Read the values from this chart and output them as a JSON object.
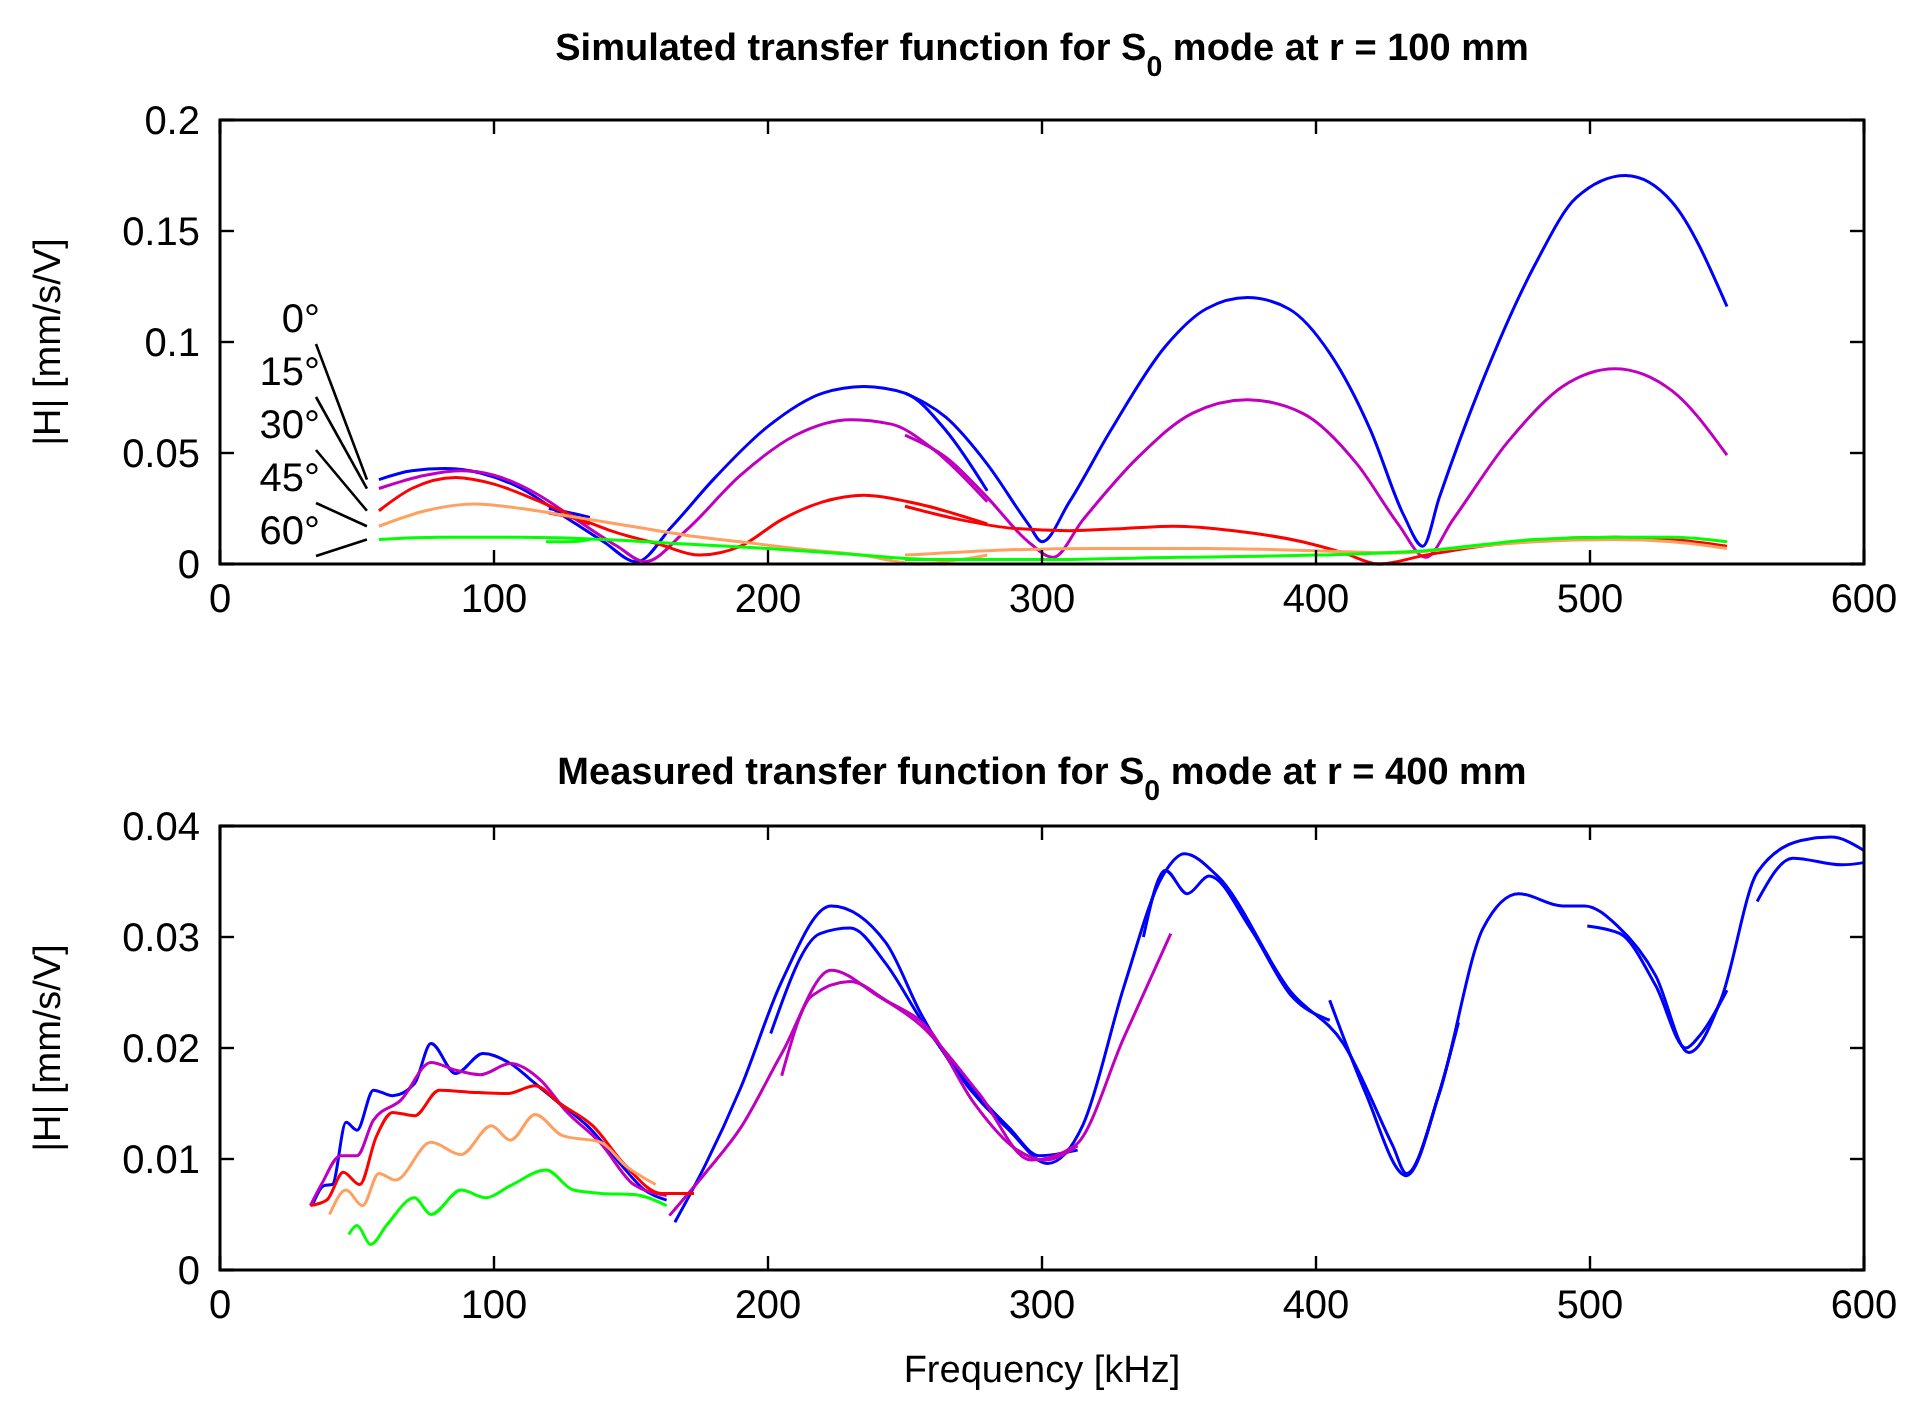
{
  "chart_data": [
    {
      "type": "line",
      "title": "Simulated transfer function for S$_{0}$ mode at r = 100 mm",
      "ylabel": "|H| [mm/s/V]",
      "xlim": [
        0,
        600
      ],
      "xticks": [
        0,
        100,
        200,
        300,
        400,
        500,
        600
      ],
      "ylim": [
        0,
        0.2
      ],
      "yticks": [
        0,
        0.05,
        0.1,
        0.15,
        0.2
      ],
      "series": [
        {
          "name": "0°",
          "color": "#0000ff",
          "x": [
            58,
            70,
            82,
            95,
            110,
            125,
            140,
            152,
            165,
            180,
            200,
            220,
            235,
            250,
            265,
            280
          ],
          "values": [
            0.038,
            0.042,
            0.043,
            0.041,
            0.034,
            0.022,
            0.01,
            0.001,
            0.017,
            0.038,
            0.062,
            0.077,
            0.08,
            0.077,
            0.06,
            0.033
          ]
        },
        {
          "color": "#0000ff",
          "x": [
            250,
            265,
            280,
            295,
            300,
            310,
            325,
            345,
            360,
            375,
            390,
            405,
            420,
            432,
            439,
            445,
            460,
            480,
            495,
            513,
            530,
            550
          ],
          "values": [
            0.077,
            0.066,
            0.045,
            0.018,
            0.01,
            0.028,
            0.06,
            0.098,
            0.115,
            0.12,
            0.115,
            0.095,
            0.06,
            0.022,
            0.008,
            0.03,
            0.08,
            0.135,
            0.165,
            0.175,
            0.163,
            0.116
          ]
        },
        {
          "color": "#0000ff",
          "x": [
            120,
            128,
            135
          ],
          "values": [
            0.025,
            0.023,
            0.021
          ]
        },
        {
          "name": "15°",
          "color": "#bf00bf",
          "x": [
            58,
            75,
            88,
            100,
            115,
            130,
            145,
            155,
            170,
            190,
            210,
            230,
            245,
            260,
            280
          ],
          "values": [
            0.034,
            0.04,
            0.042,
            0.04,
            0.032,
            0.02,
            0.008,
            0.001,
            0.015,
            0.04,
            0.058,
            0.065,
            0.063,
            0.052,
            0.028
          ]
        },
        {
          "color": "#bf00bf",
          "x": [
            250,
            265,
            280,
            295,
            304,
            315,
            335,
            355,
            375,
            395,
            415,
            430,
            440,
            450,
            470,
            490,
            509,
            530,
            550
          ],
          "values": [
            0.058,
            0.048,
            0.03,
            0.01,
            0.003,
            0.02,
            0.048,
            0.068,
            0.074,
            0.068,
            0.045,
            0.018,
            0.003,
            0.02,
            0.055,
            0.08,
            0.088,
            0.078,
            0.049
          ]
        },
        {
          "name": "30°",
          "color": "#ff0000",
          "x": [
            58,
            70,
            86,
            100,
            115,
            130,
            145,
            160,
            175,
            190,
            205,
            220,
            235,
            255,
            280
          ],
          "values": [
            0.024,
            0.034,
            0.039,
            0.036,
            0.029,
            0.021,
            0.014,
            0.009,
            0.004,
            0.008,
            0.02,
            0.028,
            0.031,
            0.027,
            0.018
          ]
        },
        {
          "color": "#ff0000",
          "x": [
            250,
            270,
            290,
            310,
            330,
            348,
            370,
            395,
            410,
            423,
            440,
            460,
            485,
            509,
            530,
            550
          ],
          "values": [
            0.026,
            0.02,
            0.016,
            0.015,
            0.016,
            0.017,
            0.015,
            0.01,
            0.005,
            0,
            0.004,
            0.008,
            0.011,
            0.012,
            0.011,
            0.008
          ]
        },
        {
          "color": "#ff0000",
          "x": [
            120,
            128,
            135
          ],
          "values": [
            0.023,
            0.021,
            0.018
          ]
        },
        {
          "name": "45°",
          "color": "#ffa060",
          "x": [
            58,
            75,
            93,
            110,
            130,
            150,
            170,
            190,
            210,
            234,
            255,
            270,
            280
          ],
          "values": [
            0.017,
            0.024,
            0.027,
            0.025,
            0.021,
            0.017,
            0.013,
            0.01,
            0.007,
            0.004,
            0,
            0.002,
            0.004
          ]
        },
        {
          "color": "#ffa060",
          "x": [
            250,
            280,
            320,
            360,
            400,
            430,
            450,
            480,
            509,
            530,
            550
          ],
          "values": [
            0.004,
            0.006,
            0.007,
            0.007,
            0.006,
            0.005,
            0.007,
            0.01,
            0.011,
            0.01,
            0.007
          ]
        },
        {
          "name": "60°",
          "color": "#00ff00",
          "x": [
            58,
            80,
            110,
            140,
            170,
            200,
            234,
            260,
            280
          ],
          "values": [
            0.011,
            0.012,
            0.012,
            0.011,
            0.009,
            0.007,
            0.004,
            0.002,
            0.002
          ]
        },
        {
          "color": "#00ff00",
          "x": [
            250,
            300,
            350,
            400,
            440,
            480,
            509,
            530,
            550
          ],
          "values": [
            0.002,
            0.002,
            0.003,
            0.004,
            0.006,
            0.011,
            0.012,
            0.012,
            0.01
          ]
        },
        {
          "color": "#00ff00",
          "x": [
            119,
            128,
            135
          ],
          "values": [
            0.01,
            0.01,
            0.011
          ]
        }
      ]
    },
    {
      "type": "line",
      "title": "Measured transfer function for S$_{0}$ mode at r = 400 mm",
      "xlabel": "Frequency [kHz]",
      "ylabel": "|H| [mm/s/V]",
      "xlim": [
        0,
        600
      ],
      "xticks": [
        0,
        100,
        200,
        300,
        400,
        500,
        600
      ],
      "ylim": [
        0,
        0.04
      ],
      "yticks": [
        0,
        0.01,
        0.02,
        0.03,
        0.04
      ],
      "series": [
        {
          "color": "#0000ff",
          "x": [
            34,
            38,
            41,
            46,
            50,
            56,
            63,
            71,
            77,
            86,
            96,
            106,
            115,
            124,
            134,
            146,
            155,
            163
          ],
          "values": [
            0.006,
            0.0076,
            0.0077,
            0.0133,
            0.0126,
            0.0162,
            0.0157,
            0.0168,
            0.0204,
            0.0177,
            0.0195,
            0.0186,
            0.0168,
            0.015,
            0.013,
            0.0096,
            0.0072,
            0.0063
          ]
        },
        {
          "color": "#0000ff",
          "x": [
            166,
            177,
            190,
            205,
            223,
            243,
            256,
            269,
            288,
            302,
            315,
            330,
            344,
            352,
            364,
            391,
            410,
            428,
            433,
            445,
            461,
            474,
            490,
            498,
            510,
            524,
            536,
            548,
            561,
            577,
            588,
            600
          ],
          "values": [
            0.0043,
            0.0094,
            0.0164,
            0.026,
            0.0328,
            0.0295,
            0.023,
            0.0178,
            0.0126,
            0.0096,
            0.0131,
            0.0256,
            0.0355,
            0.0375,
            0.0355,
            0.025,
            0.0204,
            0.0112,
            0.0087,
            0.0159,
            0.0308,
            0.0339,
            0.0328,
            0.0328,
            0.031,
            0.0265,
            0.0196,
            0.0245,
            0.0358,
            0.0387,
            0.039,
            0.0378
          ]
        },
        {
          "color": "#0000ff",
          "x": [
            201,
            219,
            230,
            243,
            256,
            269,
            288,
            299,
            313
          ],
          "values": [
            0.0213,
            0.0303,
            0.0308,
            0.0276,
            0.0225,
            0.018,
            0.0128,
            0.0103,
            0.0108
          ]
        },
        {
          "color": "#0000ff",
          "x": [
            337,
            345,
            353,
            361,
            376,
            391,
            405
          ],
          "values": [
            0.03,
            0.036,
            0.0339,
            0.0355,
            0.0308,
            0.0247,
            0.0225
          ]
        },
        {
          "color": "#0000ff",
          "x": [
            405,
            418,
            433,
            445,
            452
          ],
          "values": [
            0.0243,
            0.016,
            0.0085,
            0.016,
            0.0223
          ]
        },
        {
          "color": "#0000ff",
          "x": [
            499,
            511,
            524,
            535,
            540,
            550
          ],
          "values": [
            0.031,
            0.0303,
            0.0256,
            0.02,
            0.0211,
            0.0252
          ]
        },
        {
          "color": "#0000ff",
          "x": [
            561,
            574,
            592,
            600
          ],
          "values": [
            0.0332,
            0.0371,
            0.0365,
            0.0367
          ]
        },
        {
          "color": "#bf00bf",
          "x": [
            33,
            37,
            44,
            50,
            56,
            66,
            77,
            86,
            95,
            106,
            117,
            126,
            139,
            151,
            163
          ],
          "values": [
            0.0058,
            0.0077,
            0.0103,
            0.0103,
            0.0135,
            0.0153,
            0.0187,
            0.018,
            0.0176,
            0.0186,
            0.0171,
            0.0144,
            0.0114,
            0.0077,
            0.0067
          ]
        },
        {
          "color": "#bf00bf",
          "x": [
            164,
            177,
            190,
            205,
            223,
            240,
            256,
            277,
            296,
            312,
            330,
            347
          ],
          "values": [
            0.0049,
            0.0087,
            0.0128,
            0.0195,
            0.027,
            0.0247,
            0.022,
            0.0159,
            0.0099,
            0.0112,
            0.021,
            0.0303
          ]
        },
        {
          "color": "#bf00bf",
          "x": [
            205,
            216,
            230,
            243,
            259,
            275,
            291,
            301,
            313
          ],
          "values": [
            0.0175,
            0.0247,
            0.026,
            0.0243,
            0.0216,
            0.0151,
            0.0108,
            0.0099,
            0.0112
          ]
        },
        {
          "color": "#ff0000",
          "x": [
            33,
            39,
            45,
            51,
            57,
            63,
            71,
            80,
            93,
            105,
            115,
            124,
            136,
            148,
            161,
            173
          ],
          "values": [
            0.0058,
            0.0063,
            0.0088,
            0.0077,
            0.012,
            0.0142,
            0.0139,
            0.0162,
            0.016,
            0.0159,
            0.0166,
            0.015,
            0.013,
            0.0094,
            0.0069,
            0.0069
          ]
        },
        {
          "color": "#ffa060",
          "x": [
            40,
            46,
            52,
            58,
            64,
            77,
            88,
            99,
            106,
            115,
            125,
            139,
            148,
            159
          ],
          "values": [
            0.005,
            0.0072,
            0.0058,
            0.0087,
            0.0081,
            0.0115,
            0.0104,
            0.013,
            0.0117,
            0.014,
            0.0121,
            0.0115,
            0.0094,
            0.0077
          ]
        },
        {
          "color": "#00ff00",
          "x": [
            47,
            50,
            55,
            61,
            71,
            77,
            88,
            97,
            106,
            119,
            129,
            139,
            151,
            163
          ],
          "values": [
            0.0032,
            0.004,
            0.0023,
            0.0041,
            0.0065,
            0.005,
            0.0072,
            0.0065,
            0.0076,
            0.009,
            0.0072,
            0.0069,
            0.0068,
            0.0058
          ]
        }
      ]
    }
  ]
}
